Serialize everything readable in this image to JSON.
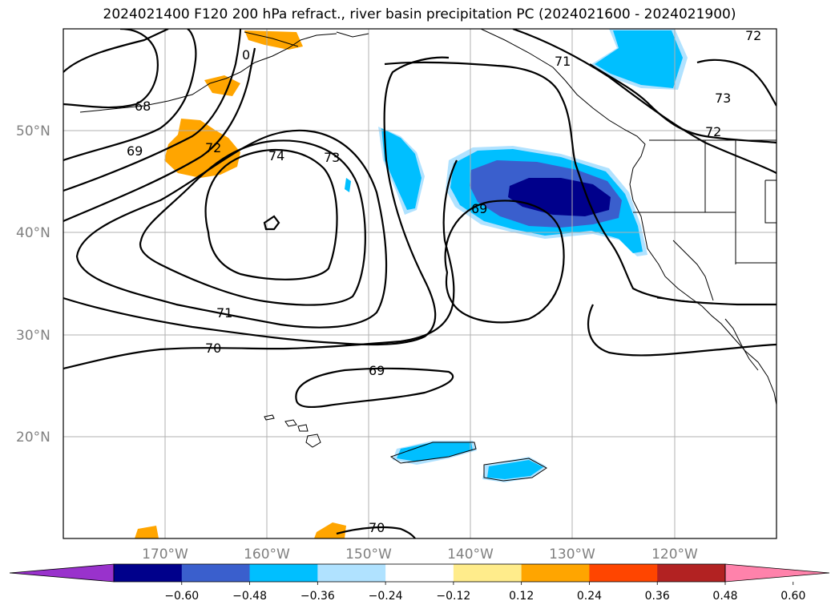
{
  "title": "2024021400 F120 200 hPa refract., river basin precipitation PC (2024021600 - 2024021900)",
  "map": {
    "lat_labels": [
      "50°N",
      "40°N",
      "30°N",
      "20°N"
    ],
    "lon_labels": [
      "170°W",
      "160°W",
      "150°W",
      "140°W",
      "130°W",
      "120°W"
    ],
    "contour_labels": [
      "68",
      "69",
      "72",
      "74",
      "73",
      "71",
      "70",
      "69",
      "69",
      "71",
      "72",
      "73",
      "72",
      "0",
      "70"
    ]
  },
  "colorbar": {
    "ticks": [
      "−0.60",
      "−0.48",
      "−0.36",
      "−0.24",
      "−0.12",
      "0.12",
      "0.24",
      "0.36",
      "0.48",
      "0.60"
    ],
    "colors": [
      "#9932cc",
      "#00008b",
      "#3a5fcd",
      "#00bfff",
      "#b0e2ff",
      "#ffffff",
      "#ffec8b",
      "#ffa500",
      "#ff4500",
      "#b22222",
      "#ff82ab"
    ]
  }
}
